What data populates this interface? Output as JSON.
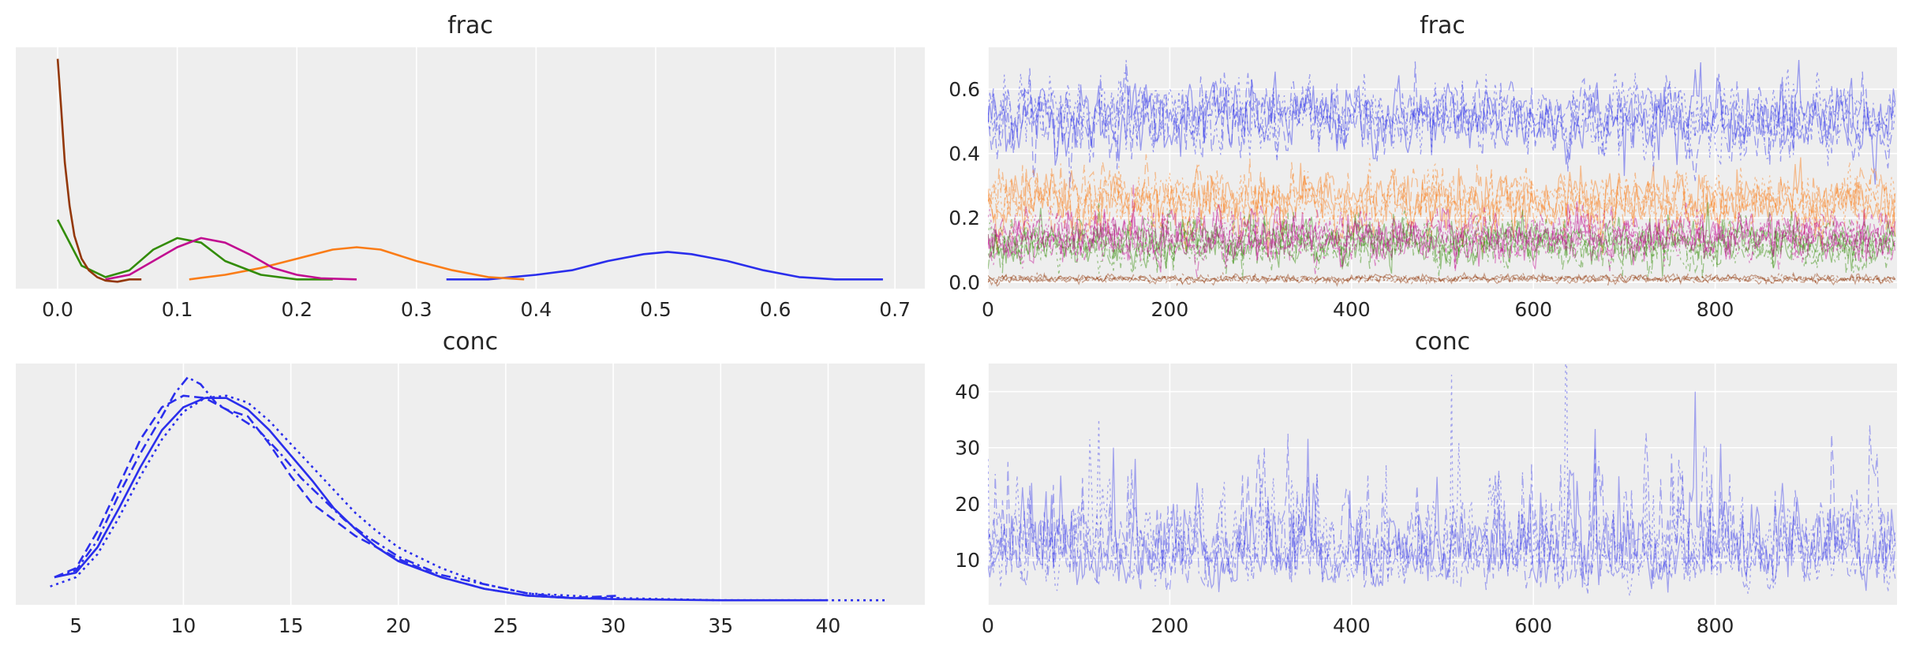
{
  "colors": {
    "background": "#eeeeee",
    "grid": "#ffffff",
    "chain_colors": [
      "#2a2eec",
      "#fa7c17",
      "#328c06",
      "#c10c90",
      "#933708"
    ],
    "conc_color": "#2a2eec"
  },
  "chart_data": [
    {
      "type": "line",
      "subtype": "kde",
      "title": "frac",
      "xlim": [
        -0.035,
        0.725
      ],
      "ylim": [
        0,
        1.05
      ],
      "xticks": [
        0.0,
        0.1,
        0.2,
        0.3,
        0.4,
        0.5,
        0.6,
        0.7
      ],
      "xtick_labels": [
        "0.0",
        "0.1",
        "0.2",
        "0.3",
        "0.4",
        "0.5",
        "0.6",
        "0.7"
      ],
      "y_ticks_visible": false,
      "grid": "vertical",
      "series": [
        {
          "x": [
            0.325,
            0.36,
            0.4,
            0.43,
            0.46,
            0.49,
            0.51,
            0.53,
            0.56,
            0.59,
            0.62,
            0.65,
            0.69
          ],
          "y": [
            0.04,
            0.04,
            0.06,
            0.08,
            0.12,
            0.15,
            0.16,
            0.15,
            0.12,
            0.08,
            0.05,
            0.04,
            0.04
          ]
        },
        {
          "x": [
            0.11,
            0.14,
            0.17,
            0.2,
            0.23,
            0.25,
            0.27,
            0.3,
            0.33,
            0.36,
            0.39
          ],
          "y": [
            0.04,
            0.06,
            0.09,
            0.13,
            0.17,
            0.18,
            0.17,
            0.12,
            0.08,
            0.05,
            0.04
          ]
        },
        {
          "x": [
            0.0,
            0.02,
            0.04,
            0.06,
            0.08,
            0.1,
            0.12,
            0.14,
            0.17,
            0.2,
            0.23
          ],
          "y": [
            0.3,
            0.1,
            0.05,
            0.08,
            0.17,
            0.22,
            0.2,
            0.12,
            0.06,
            0.04,
            0.04
          ]
        },
        {
          "x": [
            0.04,
            0.06,
            0.08,
            0.1,
            0.12,
            0.14,
            0.16,
            0.18,
            0.2,
            0.22,
            0.25
          ],
          "y": [
            0.04,
            0.06,
            0.12,
            0.18,
            0.22,
            0.2,
            0.15,
            0.09,
            0.06,
            0.045,
            0.04
          ]
        },
        {
          "x": [
            0.0,
            0.003,
            0.006,
            0.01,
            0.014,
            0.02,
            0.026,
            0.033,
            0.04,
            0.05,
            0.06,
            0.07
          ],
          "y": [
            1.0,
            0.78,
            0.55,
            0.36,
            0.23,
            0.13,
            0.08,
            0.05,
            0.035,
            0.03,
            0.04,
            0.04
          ]
        }
      ]
    },
    {
      "type": "line",
      "subtype": "trace",
      "title": "frac",
      "xlim": [
        0,
        1000
      ],
      "ylim": [
        -0.02,
        0.73
      ],
      "xticks": [
        0,
        200,
        400,
        600,
        800
      ],
      "xtick_labels": [
        "0",
        "200",
        "400",
        "600",
        "800"
      ],
      "yticks": [
        0.0,
        0.2,
        0.4,
        0.6
      ],
      "ytick_labels": [
        "0.0",
        "0.2",
        "0.4",
        "0.6"
      ],
      "grid": "both",
      "series": [
        {
          "mean": 0.51,
          "sd": 0.055
        },
        {
          "mean": 0.25,
          "sd": 0.045
        },
        {
          "mean": 0.12,
          "sd": 0.035
        },
        {
          "mean": 0.14,
          "sd": 0.035
        },
        {
          "mean": 0.01,
          "sd": 0.006
        }
      ]
    },
    {
      "type": "line",
      "subtype": "kde",
      "title": "conc",
      "xlim": [
        2.2,
        44.5
      ],
      "ylim": [
        0,
        1.05
      ],
      "xticks": [
        5,
        10,
        15,
        20,
        25,
        30,
        35,
        40
      ],
      "xtick_labels": [
        "5",
        "10",
        "15",
        "20",
        "25",
        "30",
        "35",
        "40"
      ],
      "y_ticks_visible": false,
      "grid": "vertical",
      "series": [
        {
          "dash": "solid",
          "x": [
            4,
            5,
            6,
            7,
            8,
            9,
            10,
            11,
            12,
            13,
            14,
            15,
            16,
            17,
            18,
            19,
            20,
            22,
            24,
            26,
            28,
            30,
            35,
            40
          ],
          "y": [
            0.12,
            0.14,
            0.25,
            0.42,
            0.6,
            0.76,
            0.86,
            0.9,
            0.9,
            0.85,
            0.76,
            0.65,
            0.54,
            0.42,
            0.33,
            0.25,
            0.19,
            0.12,
            0.07,
            0.04,
            0.03,
            0.025,
            0.02,
            0.02
          ]
        },
        {
          "dash": "dashed",
          "x": [
            4,
            5,
            6,
            7,
            8,
            9,
            10,
            11,
            12,
            13,
            14,
            15,
            16,
            17,
            18,
            20,
            22,
            24,
            26,
            28,
            30.3
          ],
          "y": [
            0.12,
            0.16,
            0.32,
            0.52,
            0.72,
            0.86,
            0.91,
            0.9,
            0.85,
            0.82,
            0.7,
            0.56,
            0.44,
            0.37,
            0.3,
            0.2,
            0.12,
            0.07,
            0.04,
            0.03,
            0.04
          ]
        },
        {
          "dash": "dashdot",
          "x": [
            4,
            5,
            6,
            7,
            8,
            9,
            9.6,
            10.2,
            10.8,
            11.5,
            12.5,
            13.5,
            14.5,
            15.5,
            16.5,
            17.5,
            18.5,
            20,
            22,
            24,
            26,
            28,
            30.2
          ],
          "y": [
            0.12,
            0.15,
            0.28,
            0.48,
            0.66,
            0.82,
            0.92,
            0.99,
            0.96,
            0.88,
            0.82,
            0.76,
            0.66,
            0.55,
            0.46,
            0.37,
            0.3,
            0.21,
            0.13,
            0.09,
            0.05,
            0.03,
            0.03
          ]
        },
        {
          "dash": "dotted",
          "x": [
            3.8,
            5,
            6,
            7,
            8,
            9,
            10,
            11,
            12,
            13,
            14,
            15,
            16,
            17,
            18,
            19,
            20,
            22,
            24,
            26,
            30,
            35,
            40,
            42.8
          ],
          "y": [
            0.08,
            0.12,
            0.22,
            0.38,
            0.56,
            0.72,
            0.84,
            0.9,
            0.91,
            0.88,
            0.8,
            0.7,
            0.6,
            0.5,
            0.4,
            0.32,
            0.25,
            0.16,
            0.09,
            0.05,
            0.03,
            0.02,
            0.02,
            0.02
          ]
        }
      ]
    },
    {
      "type": "line",
      "subtype": "trace",
      "title": "conc",
      "xlim": [
        0,
        1000
      ],
      "ylim": [
        2,
        45
      ],
      "xticks": [
        0,
        200,
        400,
        600,
        800
      ],
      "xtick_labels": [
        "0",
        "200",
        "400",
        "600",
        "800"
      ],
      "yticks": [
        10,
        20,
        30,
        40
      ],
      "ytick_labels": [
        "10",
        "20",
        "30",
        "40"
      ],
      "grid": "both",
      "series": [
        {
          "dash": "solid",
          "center": 12,
          "spikes": [
            [
              138,
              30
            ],
            [
              778,
              40
            ]
          ]
        },
        {
          "dash": "dashed",
          "center": 12,
          "spikes": [
            [
              373,
              30
            ]
          ]
        },
        {
          "dash": "dashdot",
          "center": 12,
          "spikes": [
            [
              215,
              34
            ],
            [
              970,
              34
            ]
          ]
        },
        {
          "dash": "dotted",
          "center": 12,
          "spikes": [
            [
              0,
              28
            ],
            [
              510,
              43
            ]
          ]
        }
      ]
    }
  ]
}
